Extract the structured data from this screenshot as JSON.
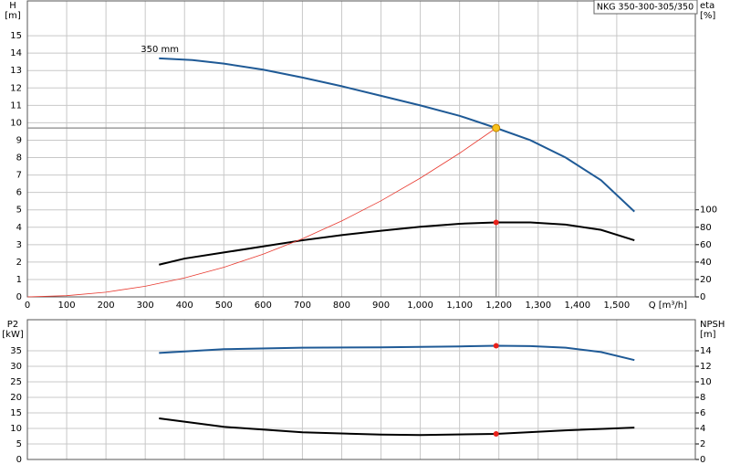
{
  "chart_data": [
    {
      "type": "line",
      "title": "NKG 350-300-305/350",
      "y_label": [
        "H",
        "[m]"
      ],
      "y2_label": [
        "eta",
        "[%]"
      ],
      "x_label": "Q [m³/h]",
      "xlim": [
        0,
        1700
      ],
      "xticks": [
        0,
        100,
        200,
        300,
        400,
        500,
        600,
        700,
        800,
        900,
        {
          "value": 1000,
          "label": "1,000"
        },
        {
          "value": 1100,
          "label": "1,100"
        },
        {
          "value": 1200,
          "label": "1,200"
        },
        {
          "value": 1300,
          "label": "1,300"
        },
        {
          "value": 1400,
          "label": "1,400"
        },
        {
          "value": 1500,
          "label": "1,500"
        }
      ],
      "ylim": [
        0,
        17
      ],
      "yticks": [
        0,
        1,
        2,
        3,
        4,
        5,
        6,
        7,
        8,
        9,
        10,
        11,
        12,
        13,
        14,
        15
      ],
      "y2lim": [
        0,
        340
      ],
      "y2ticks": [
        0,
        20,
        40,
        60,
        80,
        100
      ],
      "grid": true,
      "series": [
        {
          "name": "350 mm",
          "color": "#1f5a96",
          "width": 2,
          "x": [
            335,
            420,
            500,
            600,
            700,
            800,
            900,
            1000,
            1100,
            1193,
            1280,
            1370,
            1460,
            1545
          ],
          "values": [
            13.7,
            13.6,
            13.4,
            13.05,
            12.6,
            12.1,
            11.55,
            11.0,
            10.4,
            9.7,
            9.0,
            8.0,
            6.7,
            4.9
          ]
        },
        {
          "color": "#000000",
          "width": 2,
          "axis": "y2",
          "x": [
            335,
            400,
            500,
            600,
            700,
            800,
            900,
            1000,
            1100,
            1193,
            1280,
            1370,
            1460,
            1545
          ],
          "values": [
            37,
            44,
            51,
            58,
            65,
            71,
            76,
            80.5,
            84,
            85.5,
            85.5,
            83,
            77,
            65
          ]
        },
        {
          "color": "#e8392f",
          "width": 0.8,
          "x": [
            0,
            100,
            200,
            300,
            400,
            500,
            600,
            700,
            800,
            900,
            1000,
            1100,
            1193
          ],
          "values": [
            0,
            0.07,
            0.27,
            0.61,
            1.09,
            1.7,
            2.45,
            3.34,
            4.36,
            5.52,
            6.82,
            8.25,
            9.7
          ]
        }
      ],
      "markers": [
        {
          "x": 1193,
          "y": 9.7,
          "color": "#f7c21b",
          "crosshair": true
        },
        {
          "x": 1193,
          "y": 85.5,
          "axis": "y2",
          "color": "#e8201a"
        }
      ]
    },
    {
      "type": "line",
      "y_label": [
        "P2",
        "[kW]"
      ],
      "y2_label": [
        "NPSH",
        "[m]"
      ],
      "xlim": [
        0,
        1700
      ],
      "ylim": [
        0,
        45
      ],
      "yticks": [
        0,
        5,
        10,
        15,
        20,
        25,
        30,
        35
      ],
      "y2lim": [
        0,
        18
      ],
      "y2ticks": [
        0,
        2,
        4,
        6,
        8,
        10,
        12,
        14
      ],
      "grid": true,
      "series": [
        {
          "color": "#1f5a96",
          "width": 2,
          "x": [
            335,
            500,
            700,
            900,
            1100,
            1193,
            1280,
            1370,
            1460,
            1545
          ],
          "values": [
            34.3,
            35.5,
            36.0,
            36.1,
            36.4,
            36.6,
            36.5,
            36.0,
            34.6,
            32.0
          ]
        },
        {
          "color": "#000000",
          "width": 2,
          "axis": "y2",
          "x": [
            335,
            500,
            700,
            900,
            1000,
            1193,
            1370,
            1545
          ],
          "values": [
            5.3,
            4.2,
            3.5,
            3.2,
            3.15,
            3.3,
            3.75,
            4.1
          ]
        }
      ],
      "markers": [
        {
          "x": 1193,
          "y": 36.6,
          "color": "#e8201a"
        },
        {
          "x": 1193,
          "y": 3.3,
          "axis": "y2",
          "color": "#e8201a"
        }
      ]
    }
  ]
}
